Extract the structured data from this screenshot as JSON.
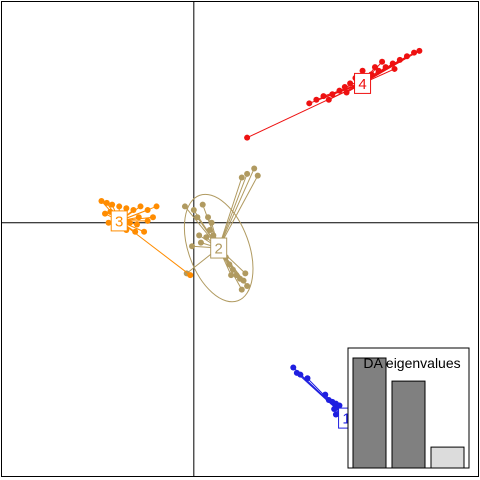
{
  "chart_data": {
    "type": "scatter",
    "title": "",
    "xlabel": "",
    "ylabel": "",
    "xlim": [
      -5.4,
      8.0
    ],
    "ylim": [
      -7.0,
      6.1
    ],
    "axes_lines_at": {
      "x": 0,
      "y": 0
    },
    "clusters": [
      {
        "label": "1",
        "color": "#1f1fe0",
        "centroid": [
          4.3,
          -5.4
        ],
        "ellipse": null,
        "points": [
          [
            2.8,
            -4.0
          ],
          [
            2.9,
            -4.15
          ],
          [
            3.0,
            -4.2
          ],
          [
            3.2,
            -4.3
          ],
          [
            3.7,
            -4.75
          ],
          [
            3.8,
            -4.9
          ],
          [
            3.9,
            -4.95
          ],
          [
            4.0,
            -5.0
          ],
          [
            4.1,
            -5.05
          ],
          [
            3.95,
            -5.15
          ],
          [
            4.0,
            -5.3
          ],
          [
            4.2,
            -5.2
          ],
          [
            4.15,
            -5.45
          ],
          [
            4.35,
            -5.55
          ],
          [
            4.5,
            -5.6
          ],
          [
            4.6,
            -5.65
          ],
          [
            4.65,
            -5.75
          ],
          [
            4.75,
            -5.8
          ],
          [
            4.85,
            -5.85
          ],
          [
            4.9,
            -5.9
          ],
          [
            4.6,
            -5.95
          ],
          [
            4.7,
            -5.85
          ],
          [
            4.45,
            -5.7
          ],
          [
            4.8,
            -5.95
          ]
        ]
      },
      {
        "label": "2",
        "color": "#b09a60",
        "centroid": [
          0.7,
          -0.7
        ],
        "ellipse": {
          "rx": 0.85,
          "ry": 1.55,
          "rotation_deg": -20
        },
        "points": [
          [
            -0.25,
            0.45
          ],
          [
            0.0,
            0.35
          ],
          [
            0.1,
            0.15
          ],
          [
            0.25,
            0.5
          ],
          [
            0.4,
            0.15
          ],
          [
            0.5,
            0.0
          ],
          [
            0.45,
            -0.2
          ],
          [
            0.55,
            -0.35
          ],
          [
            0.35,
            -0.4
          ],
          [
            0.2,
            -0.55
          ],
          [
            0.15,
            -0.35
          ],
          [
            0.6,
            -0.55
          ],
          [
            0.75,
            -0.8
          ],
          [
            0.9,
            -0.95
          ],
          [
            1.0,
            -1.15
          ],
          [
            1.1,
            -1.3
          ],
          [
            1.2,
            -1.45
          ],
          [
            1.3,
            -1.55
          ],
          [
            1.4,
            -1.6
          ],
          [
            1.5,
            -1.75
          ],
          [
            1.35,
            -1.85
          ],
          [
            1.05,
            -1.45
          ],
          [
            1.45,
            -1.4
          ],
          [
            -0.2,
            -1.4
          ],
          [
            -0.05,
            -0.65
          ],
          [
            1.35,
            1.25
          ],
          [
            1.5,
            1.35
          ],
          [
            1.8,
            1.3
          ],
          [
            1.7,
            1.5
          ]
        ]
      },
      {
        "label": "3",
        "color": "#ff8c00",
        "centroid": [
          -2.1,
          0.05
        ],
        "ellipse": null,
        "points": [
          [
            -2.6,
            0.6
          ],
          [
            -2.45,
            0.55
          ],
          [
            -2.3,
            0.5
          ],
          [
            -2.1,
            0.45
          ],
          [
            -1.9,
            0.4
          ],
          [
            -1.7,
            0.35
          ],
          [
            -1.5,
            0.45
          ],
          [
            -1.3,
            0.35
          ],
          [
            -1.05,
            0.45
          ],
          [
            -1.15,
            0.15
          ],
          [
            -1.3,
            0.05
          ],
          [
            -1.55,
            0.15
          ],
          [
            -1.8,
            0.0
          ],
          [
            -2.0,
            -0.1
          ],
          [
            -2.2,
            -0.15
          ],
          [
            -2.4,
            0.0
          ],
          [
            -2.5,
            0.25
          ],
          [
            -2.35,
            0.3
          ],
          [
            -2.15,
            0.2
          ],
          [
            -1.9,
            -0.2
          ],
          [
            -1.65,
            -0.25
          ],
          [
            -1.4,
            -0.25
          ],
          [
            -1.6,
            -0.05
          ],
          [
            -2.05,
            0.15
          ],
          [
            -0.1,
            -1.45
          ]
        ]
      },
      {
        "label": "4",
        "color": "#ee1111",
        "centroid": [
          4.75,
          3.85
        ],
        "ellipse": null,
        "points": [
          [
            1.5,
            2.35
          ],
          [
            3.25,
            3.3
          ],
          [
            3.45,
            3.4
          ],
          [
            3.65,
            3.5
          ],
          [
            3.9,
            3.55
          ],
          [
            4.1,
            3.65
          ],
          [
            4.25,
            3.75
          ],
          [
            4.4,
            3.85
          ],
          [
            4.6,
            3.85
          ],
          [
            4.8,
            3.95
          ],
          [
            5.0,
            4.1
          ],
          [
            5.2,
            4.2
          ],
          [
            5.4,
            4.3
          ],
          [
            5.6,
            4.4
          ],
          [
            5.8,
            4.5
          ],
          [
            6.0,
            4.6
          ],
          [
            6.2,
            4.7
          ],
          [
            6.35,
            4.75
          ],
          [
            4.55,
            4.0
          ],
          [
            4.75,
            4.2
          ],
          [
            5.1,
            4.3
          ],
          [
            5.3,
            4.45
          ],
          [
            4.9,
            3.75
          ],
          [
            4.3,
            3.6
          ],
          [
            3.8,
            3.4
          ],
          [
            5.65,
            4.25
          ]
        ]
      }
    ],
    "inset": {
      "title": "DA eigenvalues",
      "type": "bar",
      "values": [
        1.0,
        0.79,
        0.19
      ],
      "bar_colors": [
        "#808080",
        "#808080",
        "#dcdcdc"
      ]
    }
  }
}
